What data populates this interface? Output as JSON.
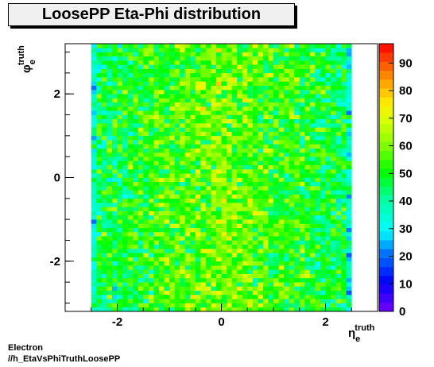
{
  "title": "LoosePP Eta-Phi distribution",
  "footer": {
    "line1": "Electron",
    "line2": "//h_EtaVsPhiTruthLoosePP"
  },
  "chart_data": {
    "type": "heatmap",
    "title": "LoosePP Eta-Phi distribution",
    "xlabel": "η_e^truth",
    "ylabel": "φ_e^truth",
    "xlim": [
      -3,
      3
    ],
    "ylim": [
      -3.2,
      3.2
    ],
    "x_ticks": [
      -2,
      0,
      2
    ],
    "y_ticks": [
      -2,
      0,
      2
    ],
    "z_ticks": [
      0,
      10,
      20,
      30,
      40,
      50,
      60,
      70,
      80,
      90
    ],
    "zlim": [
      0,
      97
    ],
    "populated_eta_range": [
      -2.5,
      2.5
    ],
    "n_bins_eta": 50,
    "n_bins_phi": 64,
    "typical_counts": {
      "eta_edge_bins": 35,
      "central_region": 60,
      "peak": 95
    },
    "grid": false,
    "colorbar": "right"
  }
}
